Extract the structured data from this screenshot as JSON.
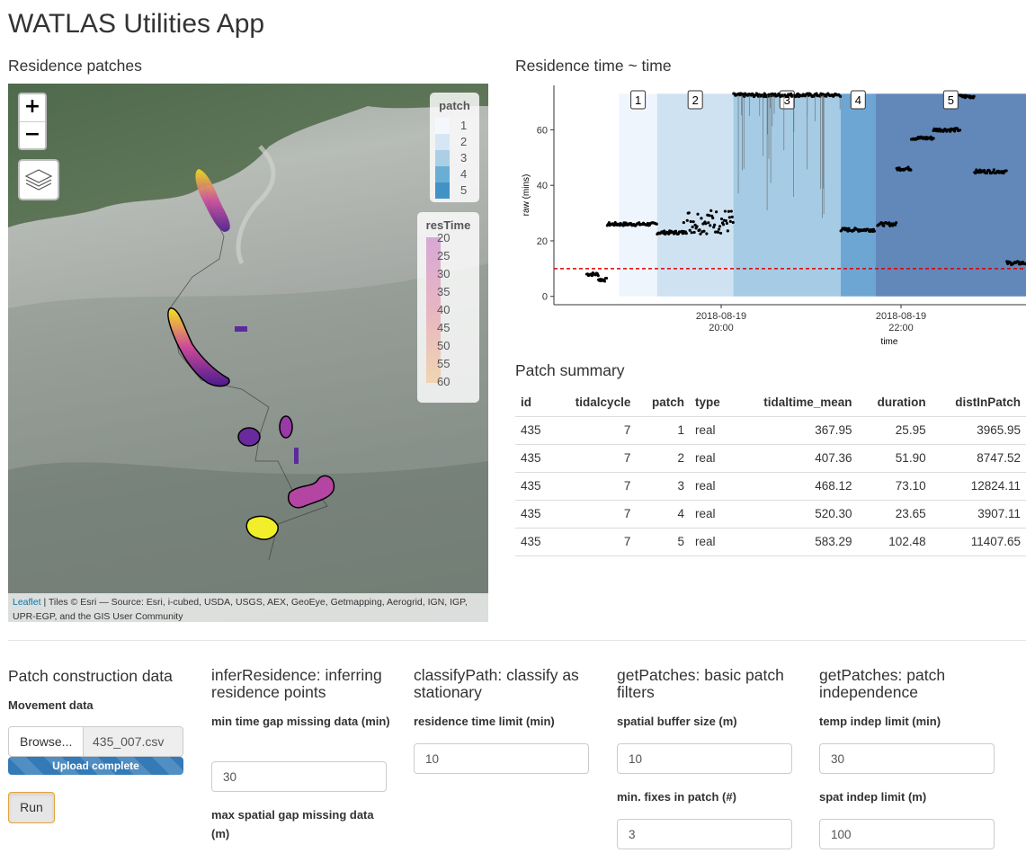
{
  "app_title": "WATLAS Utilities App",
  "map_section": {
    "heading": "Residence patches",
    "zoom_in": "+",
    "zoom_out": "−",
    "legend_patch": {
      "title": "patch",
      "labels": [
        "1",
        "2",
        "3",
        "4",
        "5"
      ],
      "colors": [
        "#f4f8fd",
        "#d6e6f4",
        "#abcfe5",
        "#6aaed6",
        "#4292c6"
      ]
    },
    "legend_restime": {
      "title": "resTime",
      "labels": [
        "20",
        "25",
        "30",
        "35",
        "40",
        "45",
        "50",
        "55",
        "60"
      ]
    },
    "attribution_link": "Leaflet",
    "attribution_text": " | Tiles © Esri — Source: Esri, i-cubed, USDA, USGS, AEX, GeoEye, Getmapping, Aerogrid, IGN, IGP, UPR-EGP, and the GIS User Community"
  },
  "chart_section": {
    "heading": "Residence time ~ time",
    "chart_data": {
      "type": "scatter",
      "title": "",
      "xlabel": "time",
      "ylabel": "raw (mins)",
      "x_tick_labels": [
        [
          "2018-08-19",
          "20:00"
        ],
        [
          "2018-08-19",
          "22:00"
        ]
      ],
      "y_ticks": [
        0,
        20,
        40,
        60
      ],
      "ylim": [
        -3,
        76
      ],
      "threshold_line": 10,
      "patch_labels": [
        "1",
        "2",
        "3",
        "4",
        "5"
      ],
      "patch_colors": [
        "#eff5fc",
        "#cfe2f2",
        "#a6cbe4",
        "#6da6d3",
        "#6287b9"
      ],
      "patches": [
        {
          "start_min": 25.95,
          "end_min": 51.9,
          "label": "1"
        },
        {
          "start_min": 51.9,
          "end_min": 103.8,
          "label": "2"
        },
        {
          "start_min": 103.8,
          "end_min": 176.9,
          "label": "3"
        },
        {
          "start_min": 176.9,
          "end_min": 200.55,
          "label": "4"
        },
        {
          "start_min": 200.55,
          "end_min": 303.0,
          "label": "5"
        }
      ]
    }
  },
  "summary": {
    "heading": "Patch summary",
    "columns": [
      "id",
      "tidalcycle",
      "patch",
      "type",
      "tidaltime_mean",
      "duration",
      "distInPatch"
    ],
    "rows": [
      [
        "435",
        "7",
        "1",
        "real",
        "367.95",
        "25.95",
        "3965.95"
      ],
      [
        "435",
        "7",
        "2",
        "real",
        "407.36",
        "51.90",
        "8747.52"
      ],
      [
        "435",
        "7",
        "3",
        "real",
        "468.12",
        "73.10",
        "12824.11"
      ],
      [
        "435",
        "7",
        "4",
        "real",
        "520.30",
        "23.65",
        "3907.11"
      ],
      [
        "435",
        "7",
        "5",
        "real",
        "583.29",
        "102.48",
        "11407.65"
      ]
    ]
  },
  "controls": {
    "construction": {
      "heading": "Patch construction data",
      "movement_label": "Movement data",
      "browse_label": "Browse...",
      "file_name": "435_007.csv",
      "progress_text": "Upload complete",
      "progress_fraction": 1.0,
      "run_label": "Run"
    },
    "infer": {
      "heading": "inferResidence: inferring residence points",
      "label1": "min time gap missing data (min)",
      "value1": "30",
      "label2": "max spatial gap missing data (m)"
    },
    "classify": {
      "heading": "classifyPath: classify as stationary",
      "label1": "residence time limit (min)",
      "value1": "10"
    },
    "basic": {
      "heading": "getPatches: basic patch filters",
      "label1": "spatial buffer size (m)",
      "value1": "10",
      "label2": "min. fixes in patch (#)",
      "value2": "3"
    },
    "indep": {
      "heading": "getPatches: patch independence",
      "label1": "temp indep limit (min)",
      "value1": "30",
      "label2": "spat indep limit (m)",
      "value2": "100"
    }
  }
}
